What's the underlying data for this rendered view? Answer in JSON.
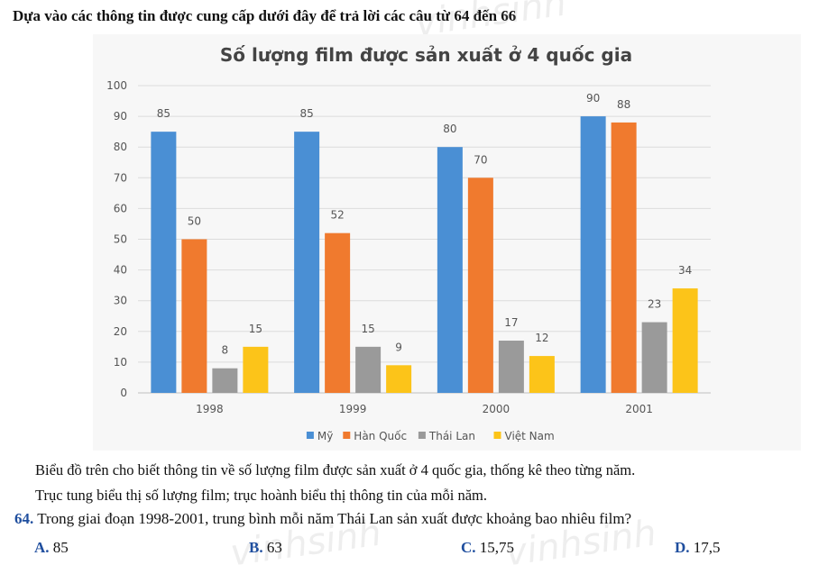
{
  "intro": "Dựa vào các thông tin được cung cấp dưới đây để trả lời các câu từ 64 đến 66",
  "chart_data": {
    "type": "bar",
    "title": "Số lượng film được sản xuất ở 4 quốc gia",
    "categories": [
      "1998",
      "1999",
      "2000",
      "2001"
    ],
    "series": [
      {
        "name": "Mỹ",
        "values": [
          85,
          85,
          80,
          90
        ],
        "color": "#4a8fd4"
      },
      {
        "name": "Hàn Quốc",
        "values": [
          50,
          52,
          70,
          88
        ],
        "color": "#f07a2e"
      },
      {
        "name": "Thái Lan",
        "values": [
          8,
          15,
          17,
          23
        ],
        "color": "#9a9a9a"
      },
      {
        "name": "Việt Nam",
        "values": [
          15,
          9,
          12,
          34
        ],
        "color": "#fcc419"
      }
    ],
    "ylim": [
      0,
      100
    ],
    "yticks": [
      0,
      10,
      20,
      30,
      40,
      50,
      60,
      70,
      80,
      90,
      100
    ],
    "grid": true,
    "legend": "bottom"
  },
  "description_line1": "Biểu đồ trên cho biết thông tin về số lượng film được sản xuất ở 4 quốc gia, thống kê theo từng năm.",
  "description_line2": "Trục tung biểu thị số lượng film; trục hoành biểu thị thông tin của mỗi năm.",
  "question": {
    "number": "64.",
    "text": " Trong giai đoạn 1998-2001, trung bình mỗi năm Thái Lan sản xuất được khoảng bao nhiêu film?"
  },
  "answers": [
    {
      "letter": "A.",
      "text": " 85"
    },
    {
      "letter": "B.",
      "text": " 63"
    },
    {
      "letter": "C.",
      "text": " 15,75"
    },
    {
      "letter": "D.",
      "text": " 17,5"
    }
  ]
}
